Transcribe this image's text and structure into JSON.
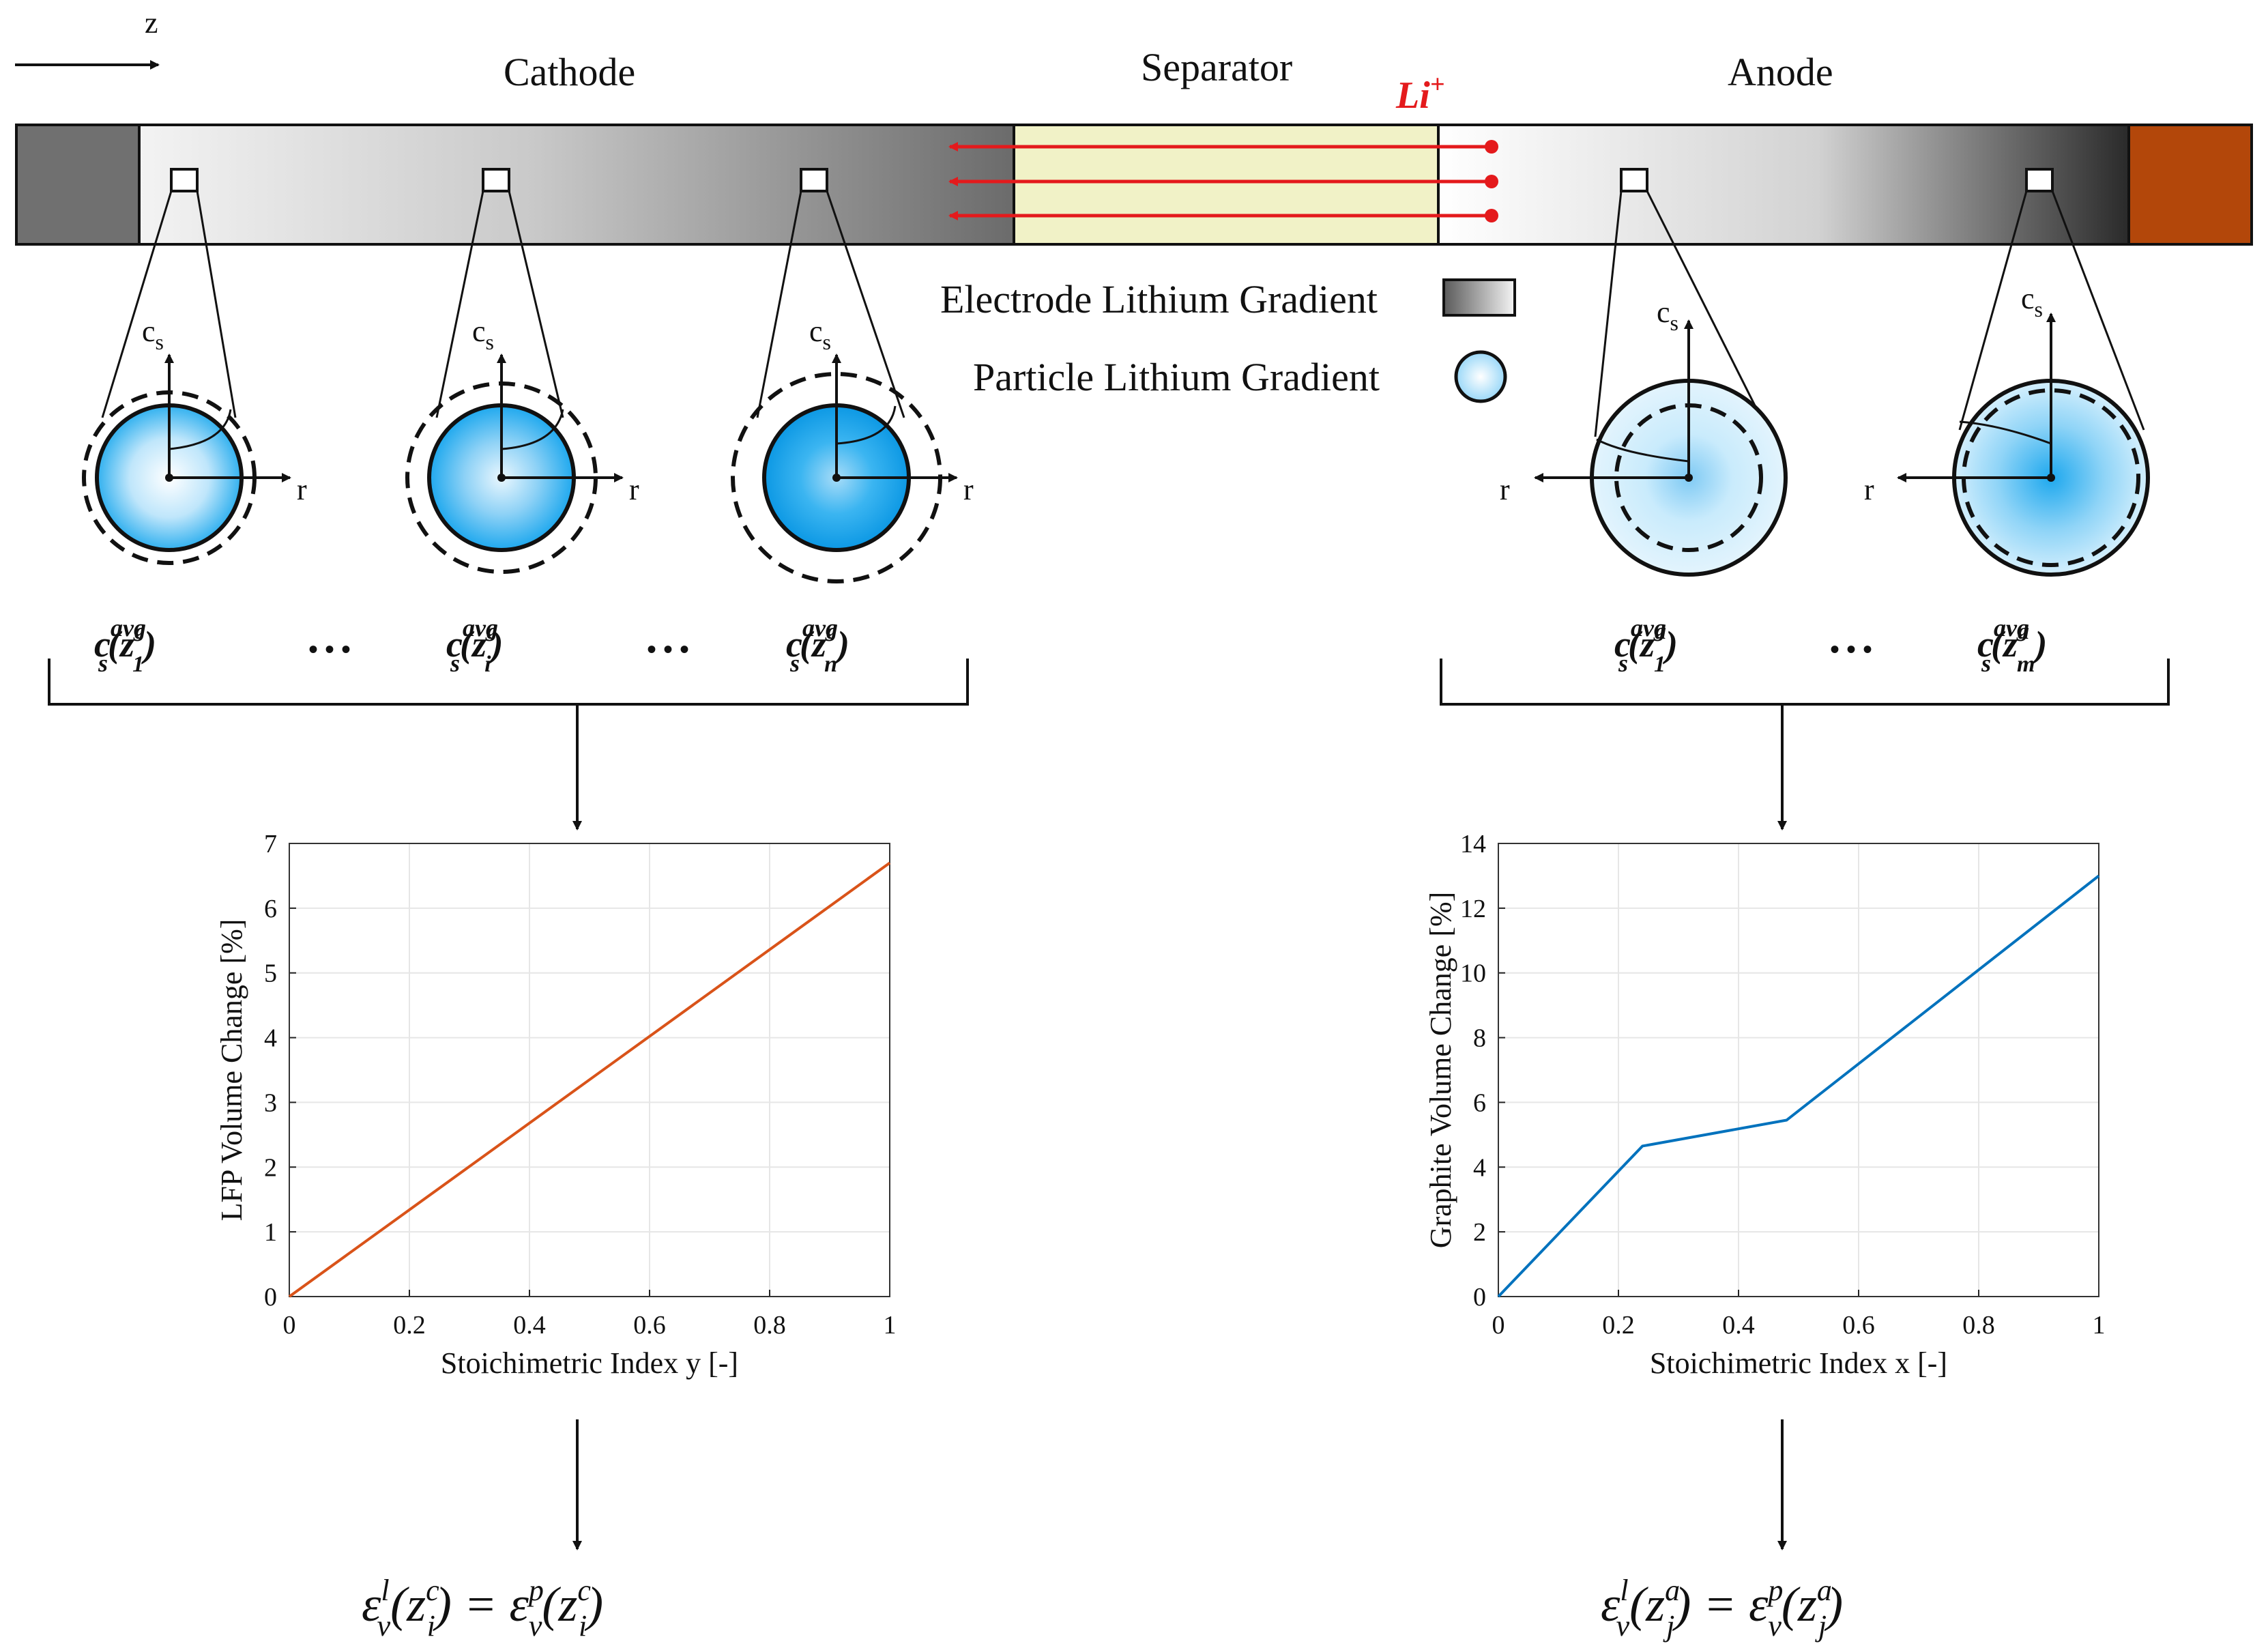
{
  "header": {
    "z_label": "z",
    "cathode": "Cathode",
    "separator": "Separator",
    "anode": "Anode",
    "li_ion": "Li",
    "li_sup": "+"
  },
  "legend": {
    "electrode_gradient": "Electrode Lithium Gradient",
    "particle_gradient": "Particle Lithium Gradient"
  },
  "particles": {
    "cs": "c",
    "cs_sub": "s",
    "r": "r"
  },
  "labels": {
    "cathode_avg": [
      {
        "base": "c",
        "sub": "s",
        "sup": "avg",
        "arg": "z",
        "arg_sub": "1",
        "arg_sup": "c"
      },
      {
        "base": "c",
        "sub": "s",
        "sup": "avg",
        "arg": "z",
        "arg_sub": "i",
        "arg_sup": "c"
      },
      {
        "base": "c",
        "sub": "s",
        "sup": "avg",
        "arg": "z",
        "arg_sub": "n",
        "arg_sup": "c"
      }
    ],
    "anode_avg": [
      {
        "base": "c",
        "sub": "s",
        "sup": "avg",
        "arg": "z",
        "arg_sub": "1",
        "arg_sup": "a"
      },
      {
        "base": "c",
        "sub": "s",
        "sup": "avg",
        "arg": "z",
        "arg_sub": "m",
        "arg_sup": "a"
      }
    ],
    "ellipsis": "•  •  •"
  },
  "equations": {
    "cathode": {
      "eps": "ε",
      "l": "l",
      "p": "p",
      "v": "v",
      "z": "z",
      "sub": "i",
      "sup": "c"
    },
    "anode": {
      "eps": "ε",
      "l": "l",
      "p": "p",
      "v": "v",
      "z": "z",
      "sub": "j",
      "sup": "a"
    }
  },
  "chart_data": [
    {
      "type": "line",
      "xlabel": "Stoichimetric Index y [-]",
      "ylabel": "LFP Volume Change [%]",
      "xlim": [
        0,
        1
      ],
      "ylim": [
        0,
        7
      ],
      "xticks": [
        "0",
        "0.2",
        "0.4",
        "0.6",
        "0.8",
        "1"
      ],
      "yticks": [
        "0",
        "1",
        "2",
        "3",
        "4",
        "5",
        "6",
        "7"
      ],
      "grid": true,
      "color": "#d95319",
      "x": [
        0,
        1
      ],
      "y": [
        0,
        6.7
      ]
    },
    {
      "type": "line",
      "xlabel": "Stoichimetric Index x [-]",
      "ylabel": "Graphite Volume Change [%]",
      "xlim": [
        0,
        1
      ],
      "ylim": [
        0,
        14
      ],
      "xticks": [
        "0",
        "0.2",
        "0.4",
        "0.6",
        "0.8",
        "1"
      ],
      "yticks": [
        "0",
        "2",
        "4",
        "6",
        "8",
        "10",
        "12",
        "14"
      ],
      "grid": true,
      "color": "#0072bd",
      "x": [
        0,
        0.24,
        0.48,
        1
      ],
      "y": [
        0,
        4.65,
        5.45,
        13.0
      ]
    }
  ],
  "colors": {
    "collector_left": "#707070",
    "separator_fill": "#f1f2c7",
    "collector_right": "#b3470a",
    "arrow_red": "#e41a1c",
    "particle_blue": "#1ea8ee"
  }
}
